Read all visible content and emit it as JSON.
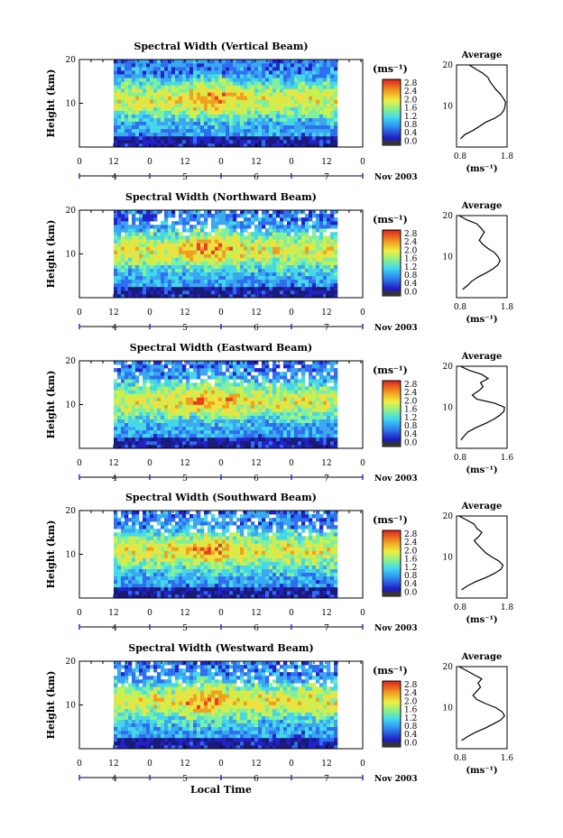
{
  "figure": {
    "x_axis_label": "Local Time",
    "date_label": "Nov 2003"
  },
  "colorbar": {
    "unit": "(ms⁻¹)",
    "ticks": [
      "2.8",
      "2.4",
      "2.0",
      "1.6",
      "1.2",
      "0.8",
      "0.4",
      "0.0"
    ]
  },
  "chart_data": [
    {
      "type": "heatmap",
      "title": "Spectral Width (Vertical Beam)",
      "ylabel": "Height (km)",
      "ylim": [
        0,
        20
      ],
      "yticks": [
        "20",
        "10"
      ],
      "xticks": [
        "0",
        "12",
        "0",
        "12",
        "0",
        "12",
        "0",
        "12",
        "0"
      ],
      "day_ticks": [
        "4",
        "5",
        "6",
        "7"
      ],
      "avg": {
        "title": "Average",
        "xticks": [
          "0.8",
          "1.8"
        ],
        "xlim": [
          0.8,
          1.8
        ],
        "xlabel": "(ms⁻¹)",
        "height": [
          2,
          3,
          4,
          5,
          6,
          7,
          8,
          9,
          10,
          11,
          12,
          13,
          14,
          15,
          16,
          17,
          18,
          19,
          20
        ],
        "width": [
          0.88,
          0.96,
          1.12,
          1.25,
          1.37,
          1.55,
          1.68,
          1.74,
          1.76,
          1.77,
          1.72,
          1.66,
          1.58,
          1.52,
          1.46,
          1.42,
          1.32,
          1.18,
          1.05
        ]
      }
    },
    {
      "type": "heatmap",
      "title": "Spectral Width (Northward Beam)",
      "ylabel": "Height (km)",
      "ylim": [
        0,
        20
      ],
      "yticks": [
        "20",
        "10"
      ],
      "xticks": [
        "0",
        "12",
        "0",
        "12",
        "0",
        "12",
        "0",
        "12",
        "0"
      ],
      "day_ticks": [
        "4",
        "5",
        "6",
        "7"
      ],
      "avg": {
        "title": "Average",
        "xticks": [
          "0.8",
          "1.8"
        ],
        "xlim": [
          0.8,
          1.8
        ],
        "xlabel": "(ms⁻¹)",
        "height": [
          2,
          3,
          4,
          5,
          6,
          7,
          8,
          9,
          10,
          11,
          12,
          13,
          14,
          15,
          16,
          17,
          18,
          19,
          20
        ],
        "width": [
          0.92,
          1.02,
          1.1,
          1.22,
          1.38,
          1.52,
          1.62,
          1.66,
          1.62,
          1.55,
          1.42,
          1.32,
          1.25,
          1.3,
          1.35,
          1.28,
          1.2,
          1.0,
          0.85
        ]
      }
    },
    {
      "type": "heatmap",
      "title": "Spectral Width (Eastward Beam)",
      "ylabel": "Height (km)",
      "ylim": [
        0,
        20
      ],
      "yticks": [
        "20",
        "10"
      ],
      "xticks": [
        "0",
        "12",
        "0",
        "12",
        "0",
        "12",
        "0",
        "12",
        "0"
      ],
      "day_ticks": [
        "4",
        "5",
        "6",
        "7"
      ],
      "avg": {
        "title": "Average",
        "xticks": [
          "0.8",
          "1.6"
        ],
        "xlim": [
          0.8,
          1.6
        ],
        "xlabel": "(ms⁻¹)",
        "height": [
          2,
          3,
          4,
          5,
          6,
          7,
          8,
          9,
          10,
          11,
          12,
          13,
          14,
          15,
          16,
          17,
          18,
          19,
          20
        ],
        "width": [
          0.87,
          0.92,
          0.98,
          1.1,
          1.25,
          1.38,
          1.48,
          1.55,
          1.56,
          1.4,
          1.12,
          1.05,
          1.15,
          1.22,
          1.18,
          1.3,
          1.2,
          1.0,
          0.86
        ]
      }
    },
    {
      "type": "heatmap",
      "title": "Spectral Width (Southward Beam)",
      "ylabel": "Height (km)",
      "ylim": [
        0,
        20
      ],
      "yticks": [
        "20",
        "10"
      ],
      "xticks": [
        "0",
        "12",
        "0",
        "12",
        "0",
        "12",
        "0",
        "12",
        "0"
      ],
      "day_ticks": [
        "4",
        "5",
        "6",
        "7"
      ],
      "avg": {
        "title": "Average",
        "xticks": [
          "0.8",
          "1.8"
        ],
        "xlim": [
          0.8,
          1.8
        ],
        "xlabel": "(ms⁻¹)",
        "height": [
          2,
          3,
          4,
          5,
          6,
          7,
          8,
          9,
          10,
          11,
          12,
          13,
          14,
          15,
          16,
          17,
          18,
          19,
          20
        ],
        "width": [
          0.9,
          1.02,
          1.18,
          1.38,
          1.55,
          1.68,
          1.72,
          1.64,
          1.5,
          1.38,
          1.3,
          1.22,
          1.15,
          1.24,
          1.3,
          1.2,
          1.15,
          1.0,
          0.85
        ]
      }
    },
    {
      "type": "heatmap",
      "title": "Spectral Width (Westward Beam)",
      "ylabel": "Height (km)",
      "ylim": [
        0,
        20
      ],
      "yticks": [
        "20",
        "10"
      ],
      "xticks": [
        "0",
        "12",
        "0",
        "12",
        "0",
        "12",
        "0",
        "12",
        "0"
      ],
      "day_ticks": [
        "4",
        "5",
        "6",
        "7"
      ],
      "avg": {
        "title": "Average",
        "xticks": [
          "0.8",
          "1.6"
        ],
        "xlim": [
          0.8,
          1.6
        ],
        "xlabel": "(ms⁻¹)",
        "height": [
          2,
          3,
          4,
          5,
          6,
          7,
          8,
          9,
          10,
          11,
          12,
          13,
          14,
          15,
          16,
          17,
          18,
          19,
          20
        ],
        "width": [
          0.88,
          0.98,
          1.1,
          1.25,
          1.38,
          1.5,
          1.56,
          1.52,
          1.42,
          1.26,
          1.12,
          1.06,
          1.12,
          1.18,
          1.14,
          1.2,
          1.08,
          0.96,
          0.84
        ]
      }
    }
  ]
}
